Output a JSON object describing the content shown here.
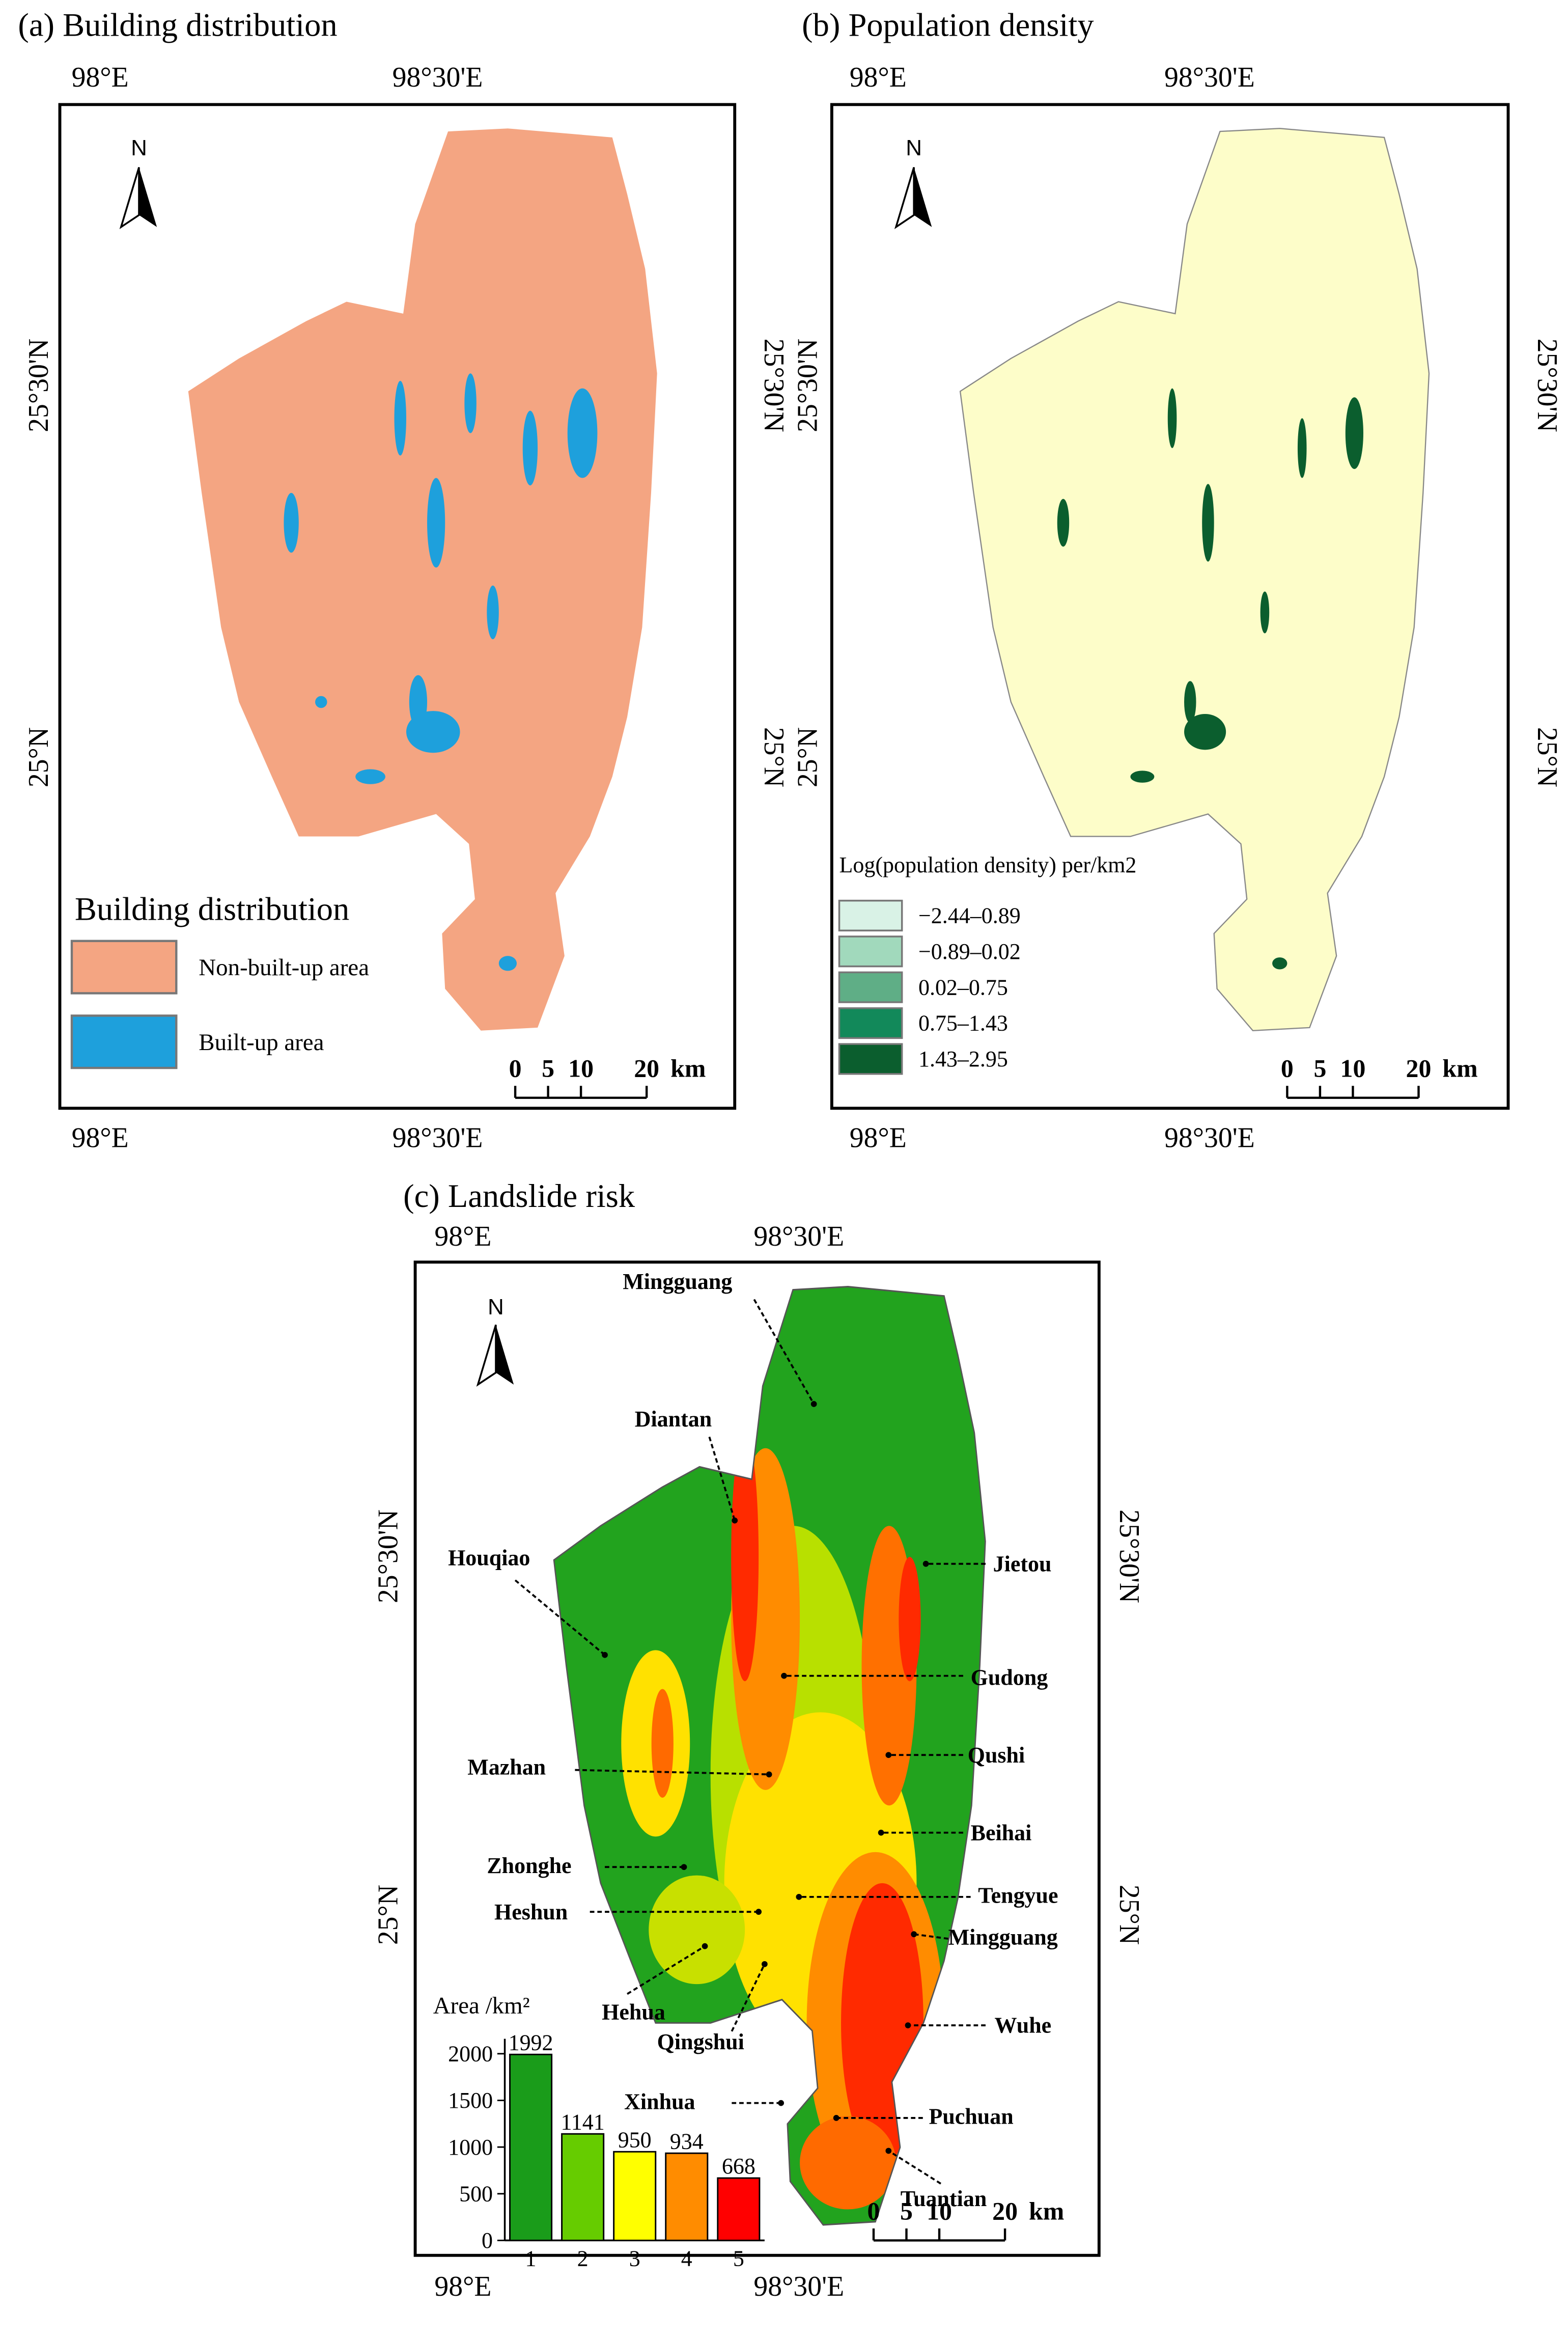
{
  "panels": [
    {
      "title": "(a) Building distribution",
      "north": "N",
      "lon_labels": [
        "98°E",
        "98°30'E"
      ],
      "lat_labels": [
        "25°30'N",
        "25°N"
      ],
      "legend": {
        "title": "Building distribution",
        "items": [
          {
            "label": "Non-built-up area",
            "color": "#f4a582"
          },
          {
            "label": "Built-up area",
            "color": "#1ea0dc"
          }
        ]
      },
      "scalebar": {
        "ticks": [
          0,
          5,
          10,
          20
        ],
        "unit": "km"
      }
    },
    {
      "title": "(b) Population density",
      "north": "N",
      "lon_labels": [
        "98°E",
        "98°30'E"
      ],
      "lat_labels": [
        "25°30'N",
        "25°N"
      ],
      "legend": {
        "title": "Log(population density) per/km2",
        "items": [
          {
            "label": "−2.44–0.89",
            "color": "#d9f2e6"
          },
          {
            "label": "−0.89–0.02",
            "color": "#a1d9bc"
          },
          {
            "label": "0.02–0.75",
            "color": "#5fae86"
          },
          {
            "label": "0.75–1.43",
            "color": "#12895a"
          },
          {
            "label": "1.43–2.95",
            "color": "#0b5e2e"
          }
        ]
      },
      "scalebar": {
        "ticks": [
          0,
          5,
          10,
          20
        ],
        "unit": "km"
      }
    },
    {
      "title": "(c) Landslide risk",
      "north": "N",
      "lon_labels": [
        "98°E",
        "98°30'E"
      ],
      "lat_labels": [
        "25°30'N",
        "25°N"
      ],
      "towns": [
        "Mingguang",
        "Diantan",
        "Houqiao",
        "Jietou",
        "Gudong",
        "Mazhan",
        "Qushi",
        "Beihai",
        "Zhonghe",
        "Tengyue",
        "Heshun",
        "Mingguang",
        "Hehua",
        "Wuhe",
        "Qingshui",
        "Xinhua",
        "Puchuan",
        "Tuantian"
      ],
      "area_chart": {
        "type": "bar",
        "ylabel": "Area /km²",
        "categories": [
          "1",
          "2",
          "3",
          "4",
          "5"
        ],
        "values": [
          1992,
          1141,
          950,
          934,
          668
        ],
        "colors": [
          "#1a9c1a",
          "#66cc00",
          "#ffff00",
          "#ff8c00",
          "#ff0000"
        ],
        "ylim": [
          0,
          2000
        ],
        "yticks": [
          0,
          500,
          1000,
          1500,
          2000
        ]
      },
      "scalebar": {
        "ticks": [
          0,
          5,
          10,
          20
        ],
        "unit": "km"
      }
    }
  ]
}
